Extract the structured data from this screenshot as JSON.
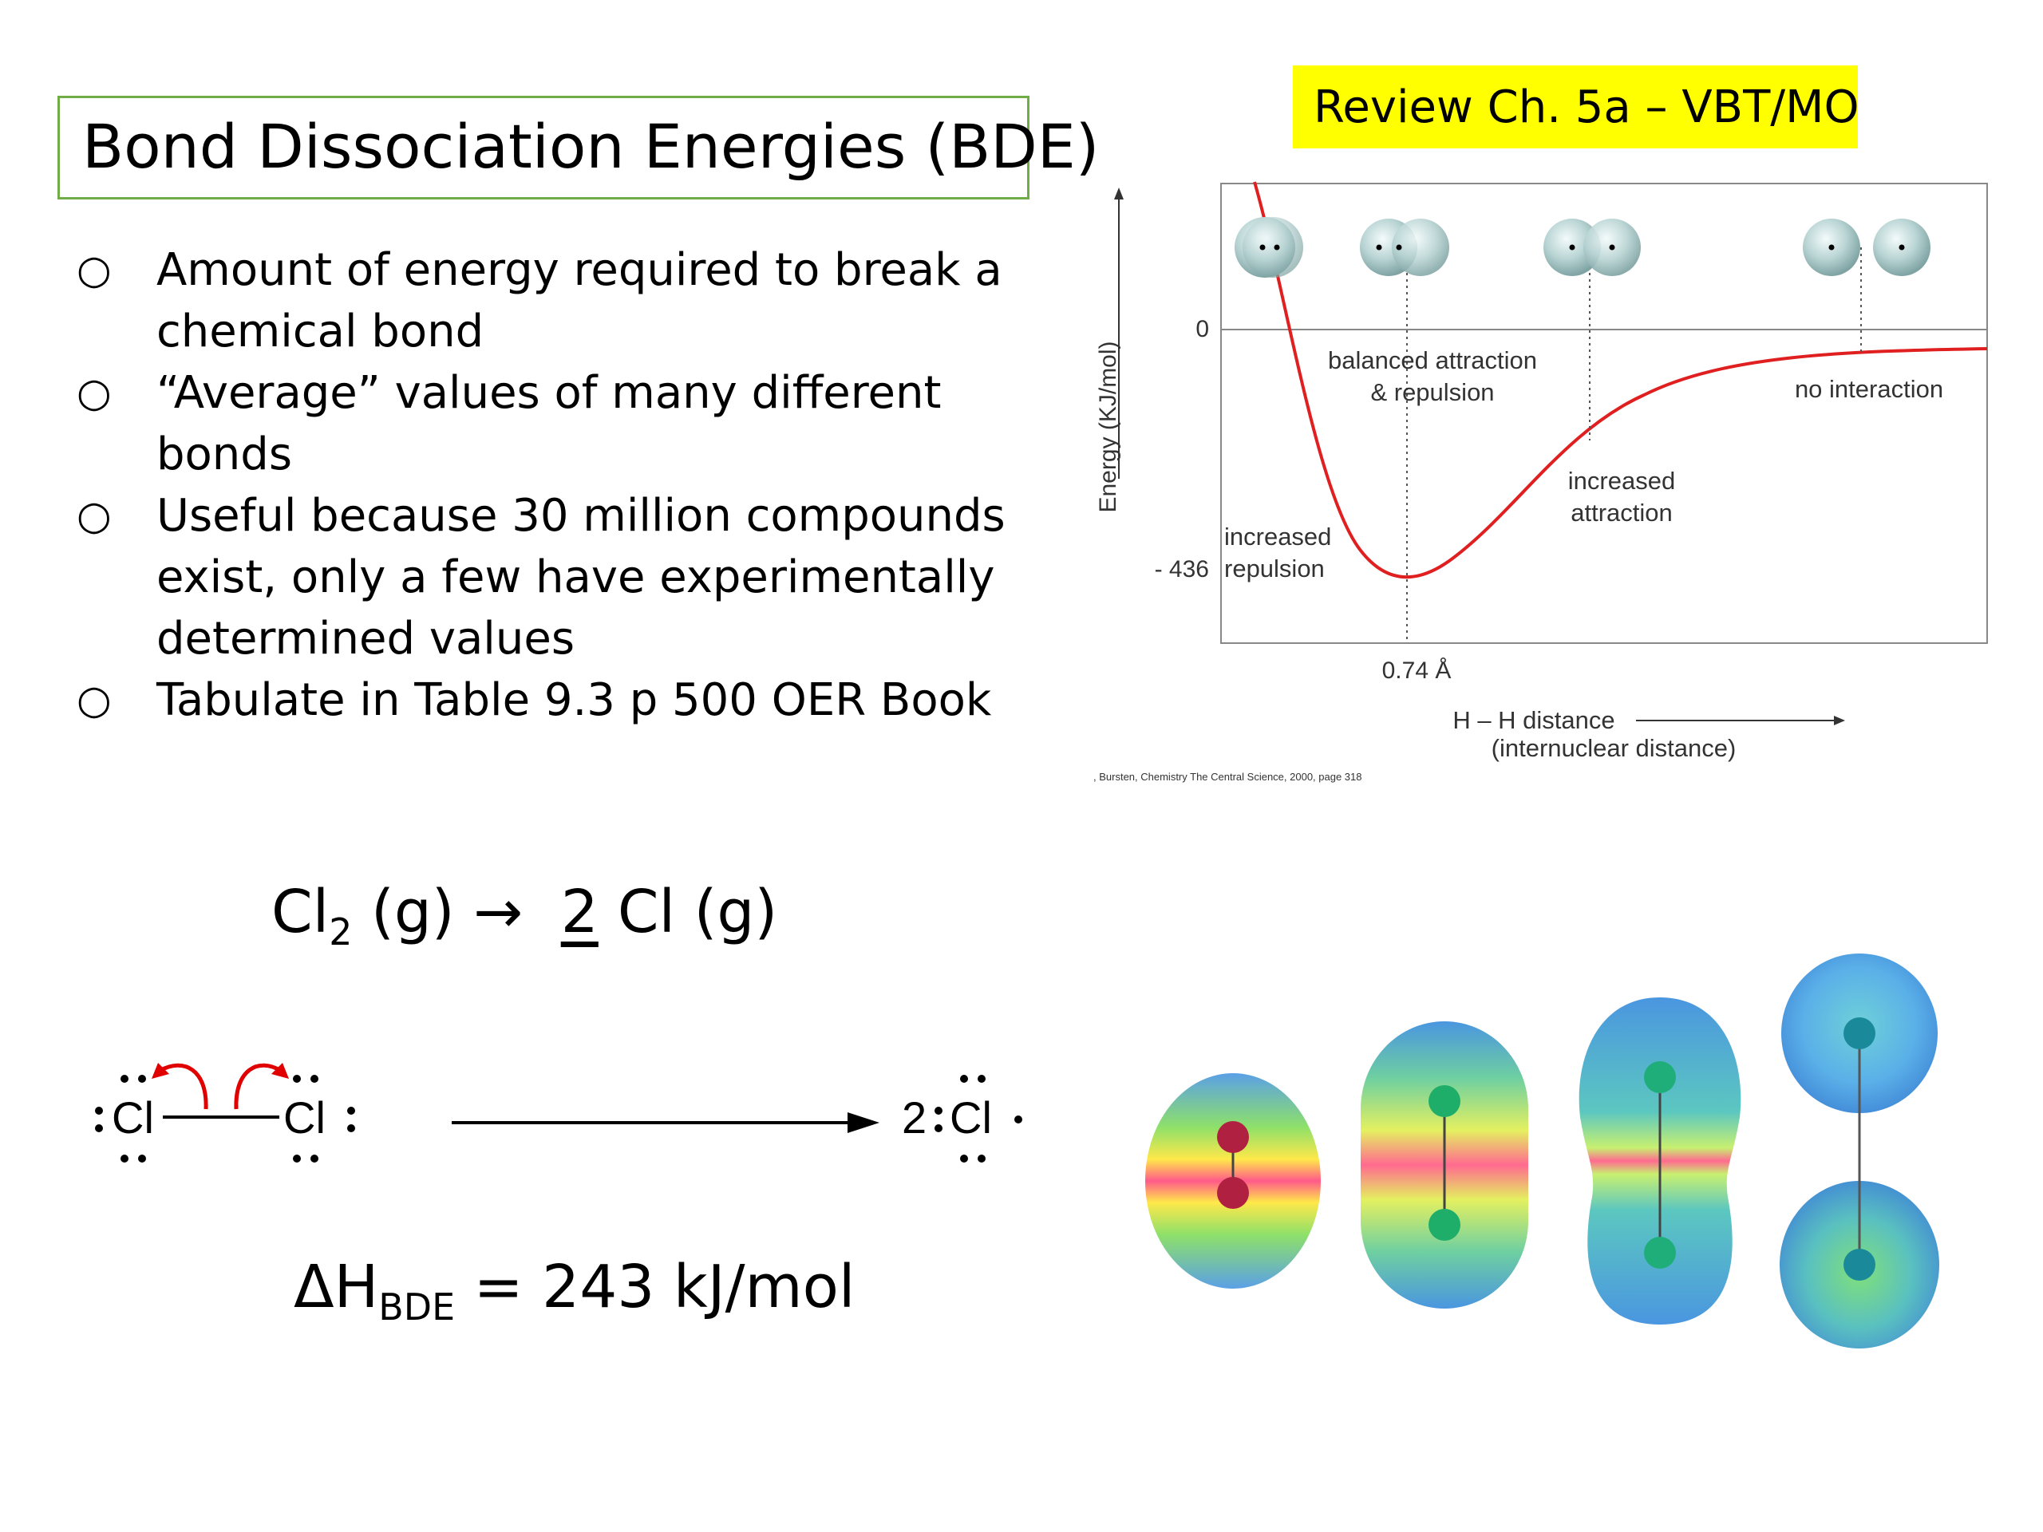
{
  "title": "Bond Dissociation Energies (BDE)",
  "review_badge": "Review Ch. 5a – VBT/MO",
  "bullet_marker": "○",
  "bullets": [
    [
      "Amount of energy required to break a",
      "chemical bond"
    ],
    [
      "“Average” values of many different",
      "bonds"
    ],
    [
      "Useful because 30 million compounds",
      "exist, only a few have experimentally",
      "determined values"
    ],
    [
      "Tabulate in Table 9.3 p 500 OER Book"
    ]
  ],
  "energy_diagram": {
    "y_axis_label": "Energy (KJ/mol)",
    "y_tick_zero": "0",
    "y_tick_min": "- 436",
    "x_tick": "0.74 Å",
    "x_axis_label_1": "H – H distance",
    "x_axis_label_2": "(internuclear distance)",
    "label_balanced_1": "balanced attraction",
    "label_balanced_2": "& repulsion",
    "label_no_interaction": "no interaction",
    "label_attraction_1": "increased",
    "label_attraction_2": "attraction",
    "label_repulsion_1": "increased",
    "label_repulsion_2": "repulsion",
    "citation": ", Bursten, Chemistry The Central Science, 2000, page 318",
    "curve_color": "#e02020"
  },
  "equation": {
    "reactant": "Cl",
    "reactant_sub": "2",
    "reactant_state": " (g) → ",
    "coefficient": "2",
    "product": "Cl (g)"
  },
  "lewis": {
    "atom_left": "Cl",
    "atom_right": "Cl",
    "product_coef": "2",
    "product_atom": "Cl"
  },
  "enthalpy": {
    "symbol": "ΔH",
    "subscript": "BDE",
    "value": " = 243 kJ/mol"
  }
}
